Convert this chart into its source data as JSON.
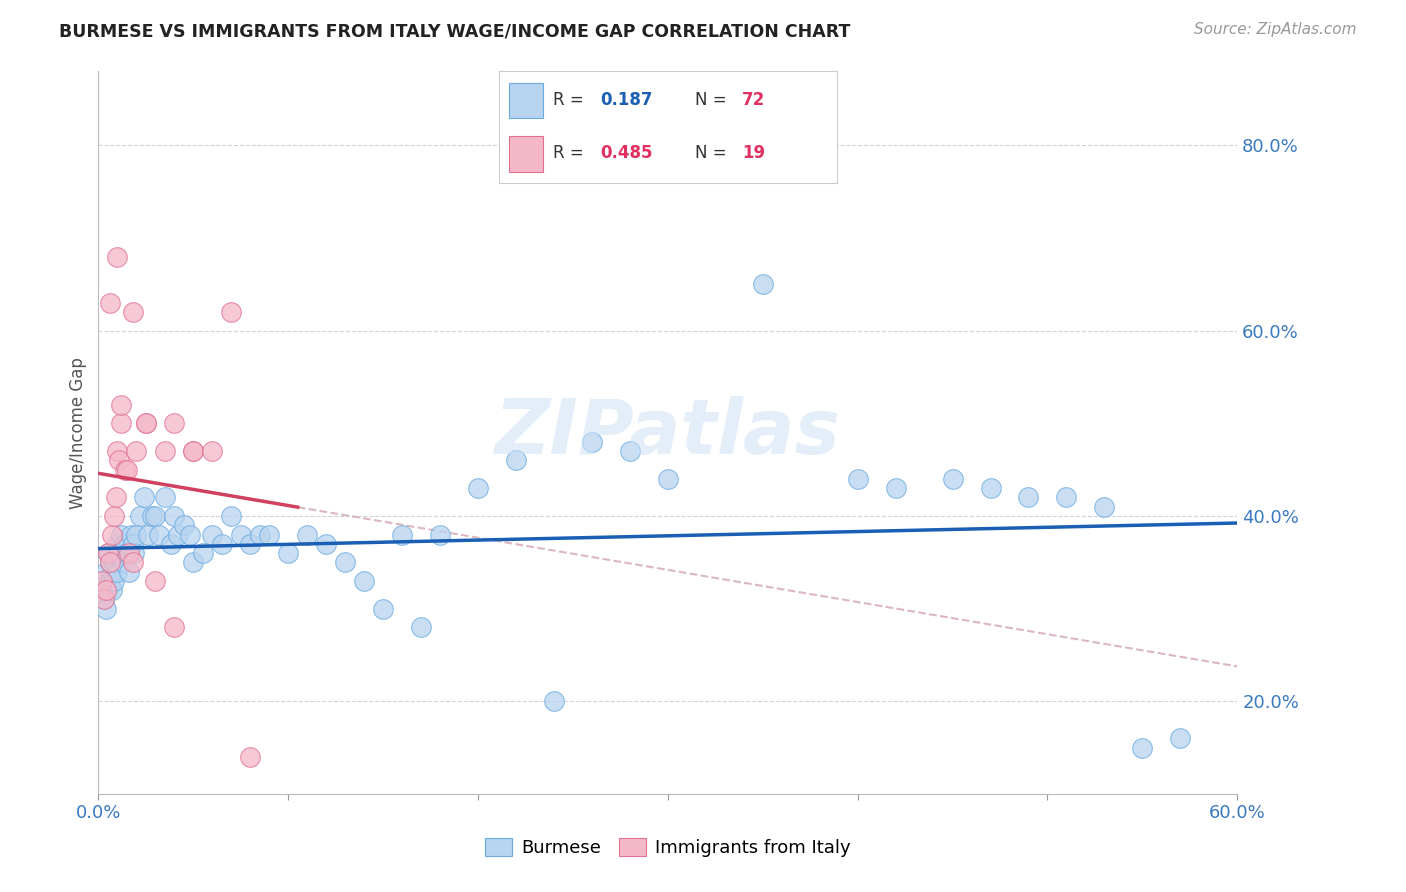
{
  "title": "BURMESE VS IMMIGRANTS FROM ITALY WAGE/INCOME GAP CORRELATION CHART",
  "source": "Source: ZipAtlas.com",
  "ylabel": "Wage/Income Gap",
  "xlim": [
    0.0,
    0.6
  ],
  "ylim": [
    0.1,
    0.88
  ],
  "xticks": [
    0.0,
    0.1,
    0.2,
    0.3,
    0.4,
    0.5,
    0.6
  ],
  "xticklabels": [
    "0.0%",
    "",
    "",
    "",
    "",
    "",
    "60.0%"
  ],
  "yticks_right": [
    0.2,
    0.4,
    0.6,
    0.8
  ],
  "ytick_labels_right": [
    "20.0%",
    "40.0%",
    "60.0%",
    "80.0%"
  ],
  "burmese_color": "#b8d4f0",
  "italy_color": "#f5b8c8",
  "burmese_edge_color": "#6aaae0",
  "italy_edge_color": "#e07090",
  "burmese_line_color": "#1a5fb4",
  "italy_line_color": "#d04060",
  "ref_line_color": "#d8b0b8",
  "watermark": "ZIPatlas",
  "burmese_x": [
    0.001,
    0.002,
    0.003,
    0.004,
    0.004,
    0.005,
    0.005,
    0.006,
    0.006,
    0.007,
    0.007,
    0.008,
    0.008,
    0.009,
    0.01,
    0.01,
    0.011,
    0.012,
    0.013,
    0.014,
    0.015,
    0.016,
    0.017,
    0.018,
    0.019,
    0.02,
    0.022,
    0.024,
    0.026,
    0.028,
    0.03,
    0.032,
    0.035,
    0.038,
    0.04,
    0.042,
    0.045,
    0.048,
    0.05,
    0.055,
    0.06,
    0.065,
    0.07,
    0.075,
    0.08,
    0.085,
    0.09,
    0.1,
    0.11,
    0.12,
    0.13,
    0.14,
    0.15,
    0.16,
    0.17,
    0.18,
    0.2,
    0.22,
    0.24,
    0.26,
    0.28,
    0.3,
    0.35,
    0.4,
    0.42,
    0.45,
    0.47,
    0.49,
    0.51,
    0.53,
    0.55,
    0.57
  ],
  "burmese_y": [
    0.33,
    0.32,
    0.31,
    0.34,
    0.3,
    0.36,
    0.32,
    0.35,
    0.33,
    0.34,
    0.32,
    0.33,
    0.35,
    0.36,
    0.34,
    0.37,
    0.36,
    0.38,
    0.35,
    0.37,
    0.36,
    0.34,
    0.38,
    0.37,
    0.36,
    0.38,
    0.4,
    0.42,
    0.38,
    0.4,
    0.4,
    0.38,
    0.42,
    0.37,
    0.4,
    0.38,
    0.39,
    0.38,
    0.35,
    0.36,
    0.38,
    0.37,
    0.4,
    0.38,
    0.37,
    0.38,
    0.38,
    0.36,
    0.38,
    0.37,
    0.35,
    0.33,
    0.3,
    0.38,
    0.28,
    0.38,
    0.43,
    0.46,
    0.2,
    0.48,
    0.47,
    0.44,
    0.65,
    0.44,
    0.43,
    0.44,
    0.43,
    0.42,
    0.42,
    0.41,
    0.15,
    0.16
  ],
  "italy_x": [
    0.002,
    0.003,
    0.004,
    0.005,
    0.006,
    0.007,
    0.008,
    0.009,
    0.01,
    0.011,
    0.012,
    0.014,
    0.016,
    0.018,
    0.02,
    0.025,
    0.03,
    0.04,
    0.05
  ],
  "italy_y": [
    0.33,
    0.31,
    0.32,
    0.36,
    0.35,
    0.38,
    0.4,
    0.42,
    0.47,
    0.46,
    0.5,
    0.45,
    0.36,
    0.35,
    0.47,
    0.5,
    0.33,
    0.28,
    0.47
  ],
  "italy_extra_x": [
    0.006,
    0.01,
    0.012,
    0.015,
    0.018,
    0.025,
    0.035,
    0.04,
    0.05,
    0.06,
    0.07,
    0.08
  ],
  "italy_extra_y": [
    0.63,
    0.68,
    0.52,
    0.45,
    0.62,
    0.5,
    0.47,
    0.5,
    0.47,
    0.47,
    0.62,
    0.14
  ]
}
